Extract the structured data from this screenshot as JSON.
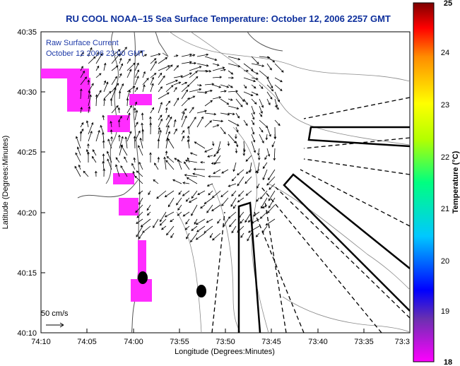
{
  "title": "RU COOL  NOAA–15  Sea Surface Temperature:  October 12, 2006 2257 GMT",
  "inset": {
    "line1": "Raw Surface Current",
    "line2": "October 12 2006 23:00 GMT"
  },
  "scale_label": "50 cm/s",
  "x_axis": {
    "label": "Longitude (Degrees:Minutes)",
    "ticks": [
      "74:10",
      "74:05",
      "74:00",
      "73:55",
      "73:50",
      "73:45",
      "73:40",
      "73:35",
      "73:3"
    ]
  },
  "y_axis": {
    "label": "Latitude (Degrees:Minutes)",
    "ticks": [
      "40:35",
      "40:30",
      "40:25",
      "40:20",
      "40:15",
      "40:10"
    ]
  },
  "colorbar": {
    "label": "Temperature (°C)",
    "ticks": [
      "25",
      "24",
      "23",
      "22",
      "21",
      "20",
      "19",
      "18"
    ],
    "colors": [
      "#7d0000",
      "#ff0000",
      "#ff8c00",
      "#ffff00",
      "#00ff80",
      "#00c8ff",
      "#0000ff",
      "#5a2a9c",
      "#ff00ff"
    ]
  },
  "colors": {
    "title": "#0d2f9c",
    "sst_patch": "#ff2cff",
    "land_line": "#555555"
  }
}
